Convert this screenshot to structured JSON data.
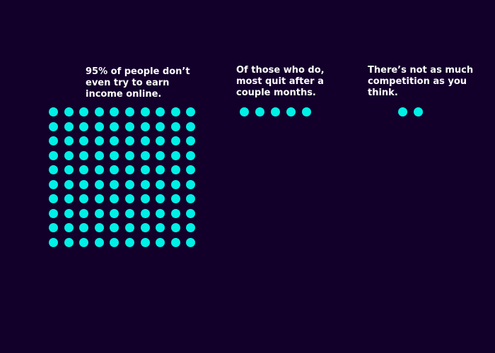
{
  "colors": {
    "background": "#12002a",
    "dot": "#00f0e6",
    "text": "#ffffff"
  },
  "panels": [
    {
      "caption": "95% of people don’t\neven try to earn\nincome online.",
      "dot_count": 100,
      "dot_columns": 10
    },
    {
      "caption": "Of those who do,\nmost quit after a\ncouple months.",
      "dot_count": 5,
      "dot_columns": 5
    },
    {
      "caption": "There’s not as much\ncompetition as you\nthink.",
      "dot_count": 2,
      "dot_columns": 2
    }
  ]
}
